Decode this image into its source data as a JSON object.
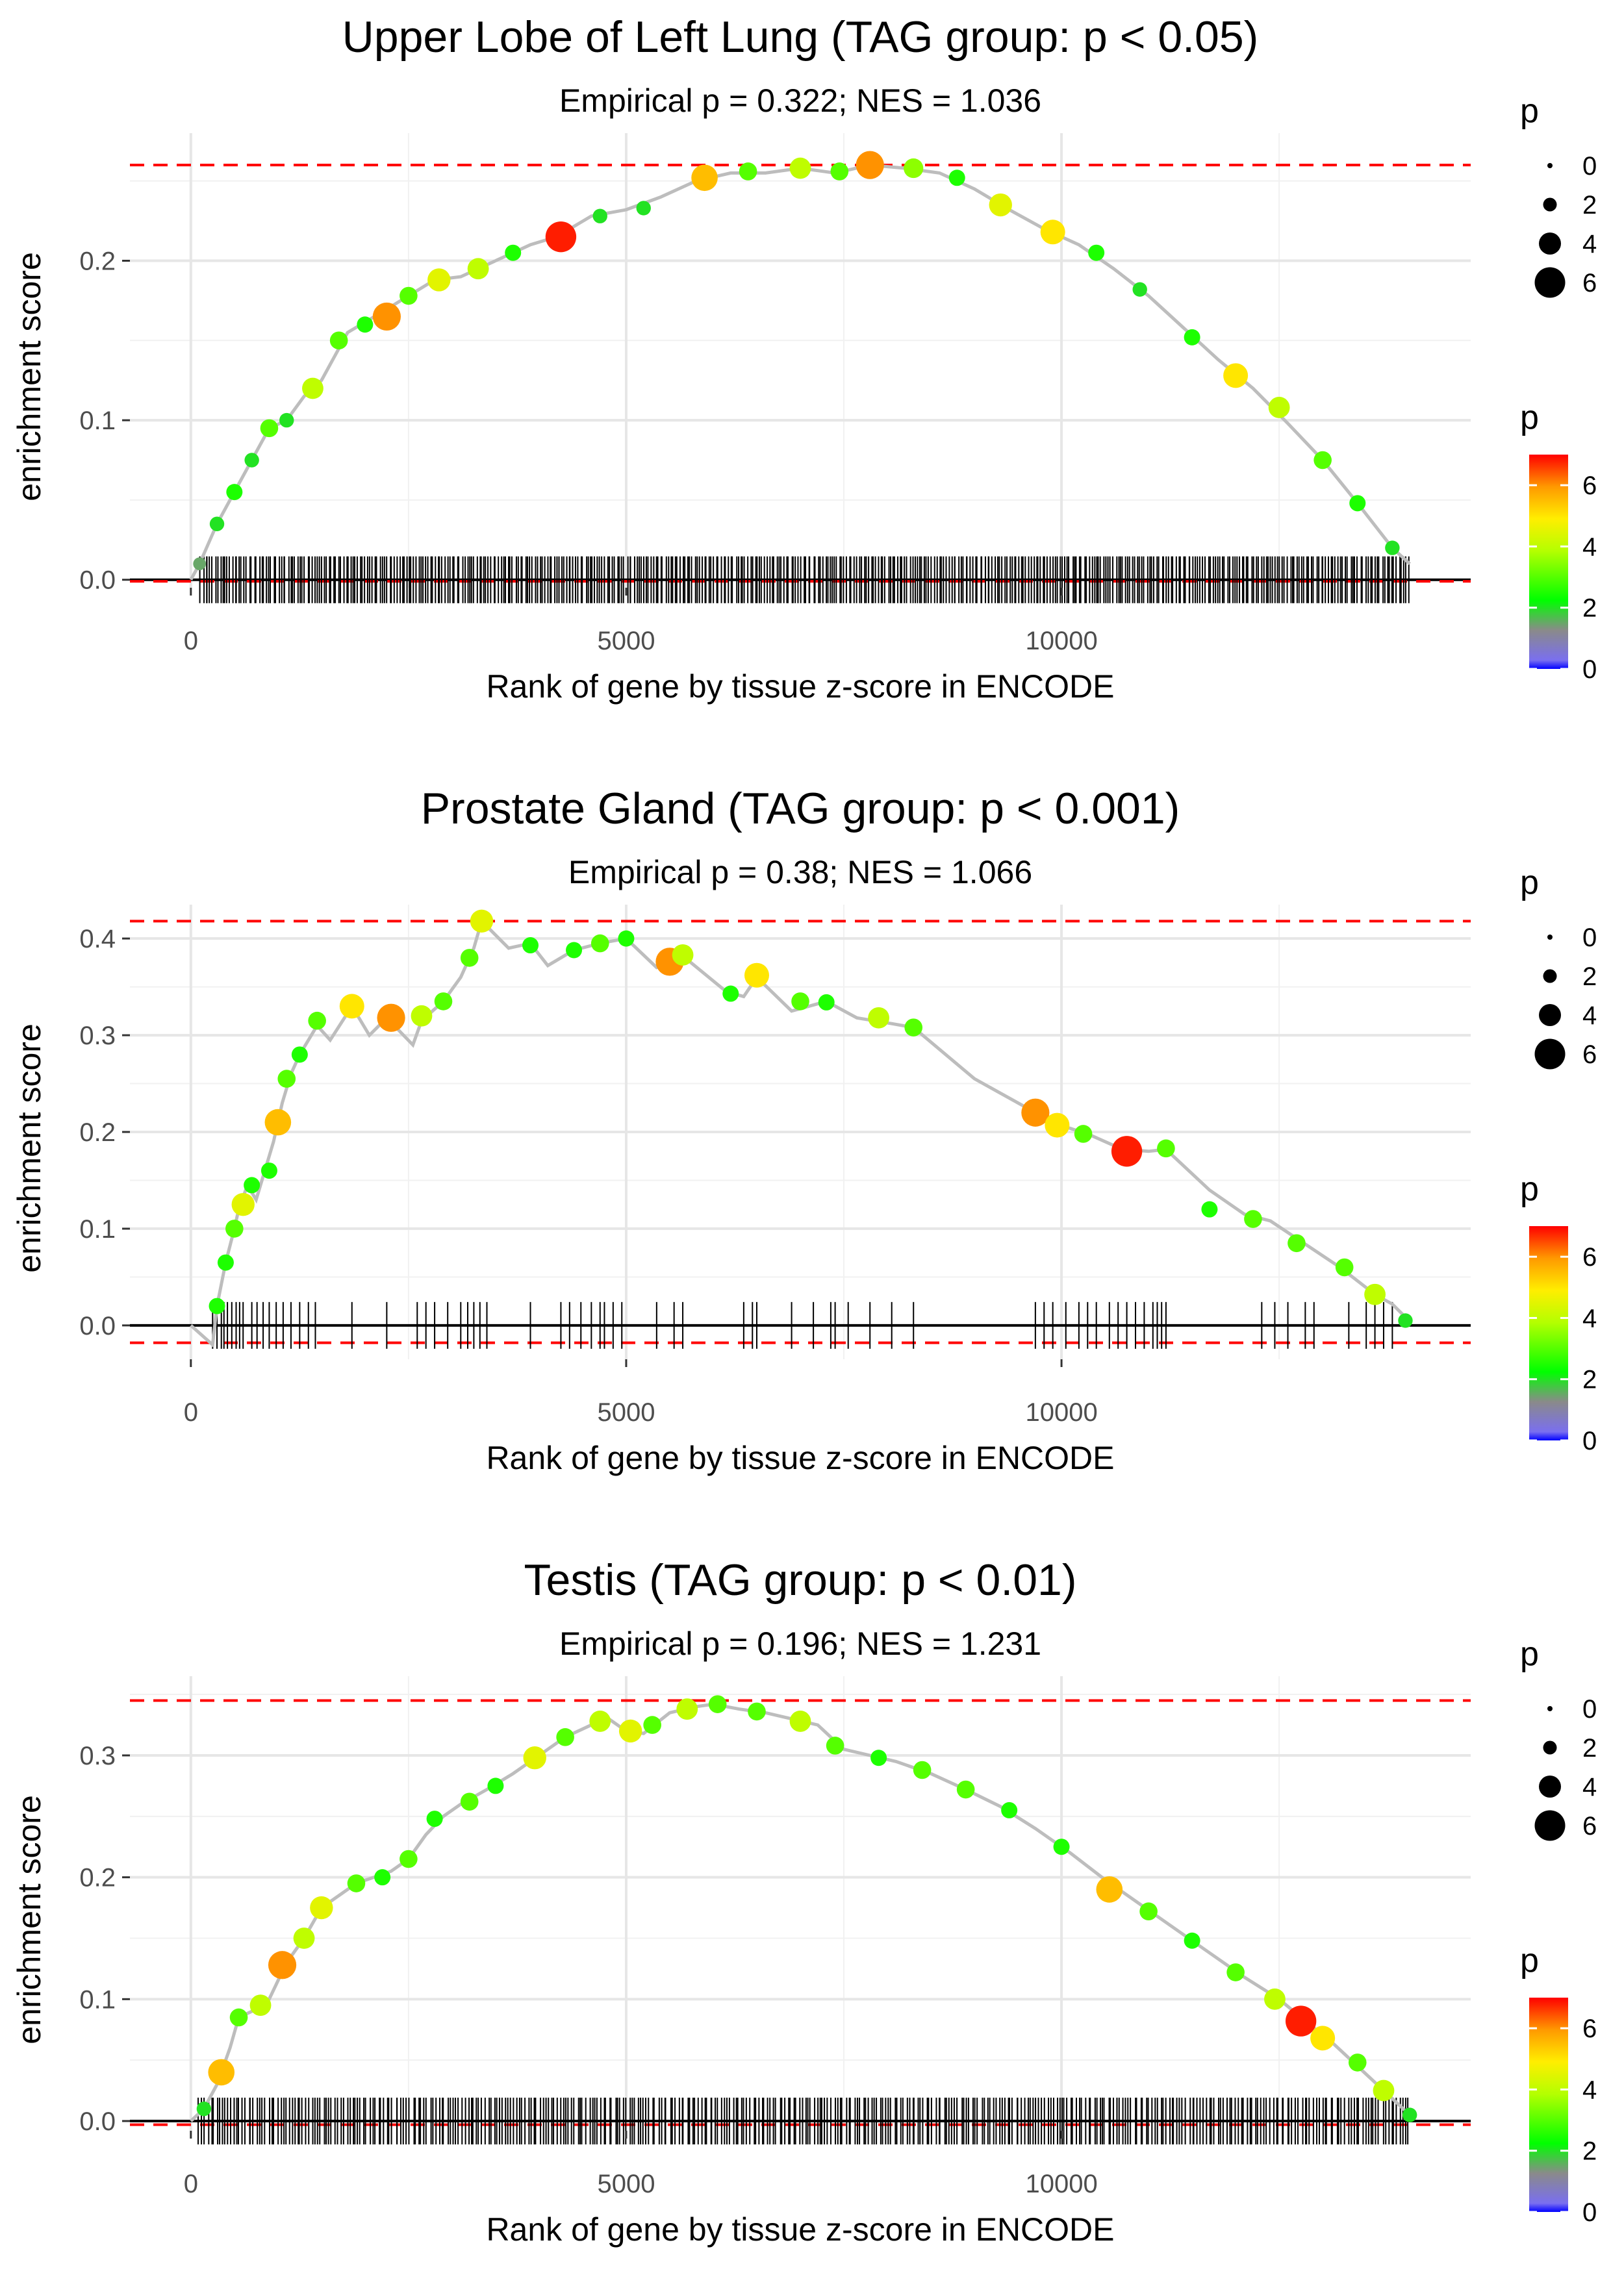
{
  "chart_data": [
    {
      "type": "scatter",
      "title": "Upper Lobe of Left Lung (TAG group: p < 0.05)",
      "subtitle": "Empirical p = 0.322; NES = 1.036",
      "xlabel": "Rank of gene by tissue z-score in ENCODE",
      "ylabel": "enrichment score",
      "xlim": [
        -700,
        14700
      ],
      "ylim": [
        -0.005,
        0.28
      ],
      "xticks": [
        0,
        5000,
        10000
      ],
      "xtick_labels": [
        "0",
        "5000",
        "10000"
      ],
      "yticks": [
        0.0,
        0.1,
        0.2
      ],
      "ytick_labels": [
        "0.0",
        "0.1",
        "0.2"
      ],
      "hlines": {
        "max_es": 0.26,
        "min_es": -0.001
      },
      "curve": [
        [
          0,
          0
        ],
        [
          100,
          0.01
        ],
        [
          300,
          0.035
        ],
        [
          500,
          0.055
        ],
        [
          700,
          0.075
        ],
        [
          900,
          0.095
        ],
        [
          1100,
          0.1
        ],
        [
          1300,
          0.115
        ],
        [
          1500,
          0.125
        ],
        [
          1800,
          0.155
        ],
        [
          2200,
          0.168
        ],
        [
          2500,
          0.178
        ],
        [
          2800,
          0.188
        ],
        [
          3100,
          0.19
        ],
        [
          3500,
          0.2
        ],
        [
          3900,
          0.21
        ],
        [
          4200,
          0.215
        ],
        [
          4600,
          0.228
        ],
        [
          5000,
          0.232
        ],
        [
          5400,
          0.24
        ],
        [
          5800,
          0.25
        ],
        [
          6200,
          0.255
        ],
        [
          6600,
          0.255
        ],
        [
          7000,
          0.258
        ],
        [
          7400,
          0.255
        ],
        [
          7800,
          0.26
        ],
        [
          8200,
          0.258
        ],
        [
          8600,
          0.255
        ],
        [
          9000,
          0.245
        ],
        [
          9400,
          0.232
        ],
        [
          9800,
          0.22
        ],
        [
          10200,
          0.21
        ],
        [
          10600,
          0.195
        ],
        [
          11000,
          0.178
        ],
        [
          11400,
          0.158
        ],
        [
          11800,
          0.138
        ],
        [
          12200,
          0.12
        ],
        [
          12600,
          0.098
        ],
        [
          13000,
          0.075
        ],
        [
          13400,
          0.048
        ],
        [
          13800,
          0.02
        ],
        [
          14000,
          0.01
        ]
      ],
      "points": [
        [
          100,
          0.01,
          1.5
        ],
        [
          300,
          0.035,
          2
        ],
        [
          500,
          0.055,
          2.5
        ],
        [
          700,
          0.075,
          2
        ],
        [
          900,
          0.095,
          3
        ],
        [
          1100,
          0.1,
          2
        ],
        [
          1400,
          0.12,
          4
        ],
        [
          1700,
          0.15,
          3
        ],
        [
          2000,
          0.16,
          2.5
        ],
        [
          2250,
          0.165,
          6
        ],
        [
          2500,
          0.178,
          3
        ],
        [
          2850,
          0.188,
          4.5
        ],
        [
          3300,
          0.195,
          4
        ],
        [
          3700,
          0.205,
          2.5
        ],
        [
          4250,
          0.215,
          6.8
        ],
        [
          4700,
          0.228,
          2
        ],
        [
          5200,
          0.233,
          2
        ],
        [
          5900,
          0.252,
          5.5
        ],
        [
          6400,
          0.256,
          3
        ],
        [
          7000,
          0.258,
          4
        ],
        [
          7450,
          0.256,
          3
        ],
        [
          7800,
          0.26,
          6
        ],
        [
          8300,
          0.258,
          3.5
        ],
        [
          8800,
          0.252,
          2.5
        ],
        [
          9300,
          0.235,
          4.5
        ],
        [
          9900,
          0.218,
          5
        ],
        [
          10400,
          0.205,
          2.5
        ],
        [
          10900,
          0.182,
          2
        ],
        [
          11500,
          0.152,
          2.5
        ],
        [
          12000,
          0.128,
          5
        ],
        [
          12500,
          0.108,
          4
        ],
        [
          13000,
          0.075,
          3
        ],
        [
          13400,
          0.048,
          2.5
        ],
        [
          13800,
          0.02,
          2
        ]
      ],
      "ticks_count": 500,
      "ticks_span": [
        100,
        14000
      ],
      "size_legend": {
        "title": "p",
        "values": [
          "0",
          "2",
          "4",
          "6"
        ]
      },
      "color_legend": {
        "title": "p",
        "ticks": [
          "0",
          "2",
          "4",
          "6"
        ],
        "max": 7
      }
    },
    {
      "type": "scatter",
      "title": "Prostate Gland (TAG group: p < 0.001)",
      "subtitle": "Empirical p = 0.38; NES = 1.066",
      "xlabel": "Rank of gene by tissue z-score in ENCODE",
      "ylabel": "enrichment score",
      "xlim": [
        -700,
        14700
      ],
      "ylim": [
        -0.035,
        0.435
      ],
      "xticks": [
        0,
        5000,
        10000
      ],
      "xtick_labels": [
        "0",
        "5000",
        "10000"
      ],
      "yticks": [
        0.0,
        0.1,
        0.2,
        0.3,
        0.4
      ],
      "ytick_labels": [
        "0.0",
        "0.1",
        "0.2",
        "0.3",
        "0.4"
      ],
      "hlines": {
        "max_es": 0.418,
        "min_es": -0.018
      },
      "curve": [
        [
          0,
          0
        ],
        [
          250,
          -0.02
        ],
        [
          300,
          0.02
        ],
        [
          400,
          0.065
        ],
        [
          500,
          0.1
        ],
        [
          550,
          0.12
        ],
        [
          650,
          0.145
        ],
        [
          750,
          0.13
        ],
        [
          850,
          0.16
        ],
        [
          950,
          0.19
        ],
        [
          1050,
          0.23
        ],
        [
          1150,
          0.26
        ],
        [
          1250,
          0.28
        ],
        [
          1450,
          0.31
        ],
        [
          1600,
          0.295
        ],
        [
          1850,
          0.33
        ],
        [
          2050,
          0.3
        ],
        [
          2250,
          0.318
        ],
        [
          2550,
          0.29
        ],
        [
          2650,
          0.315
        ],
        [
          2900,
          0.335
        ],
        [
          3100,
          0.36
        ],
        [
          3250,
          0.39
        ],
        [
          3340,
          0.418
        ],
        [
          3650,
          0.39
        ],
        [
          3900,
          0.395
        ],
        [
          4100,
          0.372
        ],
        [
          4400,
          0.388
        ],
        [
          4700,
          0.395
        ],
        [
          5000,
          0.4
        ],
        [
          5350,
          0.37
        ],
        [
          5550,
          0.375
        ],
        [
          5650,
          0.382
        ],
        [
          6150,
          0.345
        ],
        [
          6350,
          0.34
        ],
        [
          6500,
          0.36
        ],
        [
          6900,
          0.325
        ],
        [
          7300,
          0.335
        ],
        [
          7650,
          0.318
        ],
        [
          8050,
          0.312
        ],
        [
          8300,
          0.308
        ],
        [
          9000,
          0.255
        ],
        [
          9700,
          0.22
        ],
        [
          9950,
          0.208
        ],
        [
          10300,
          0.198
        ],
        [
          10700,
          0.182
        ],
        [
          11000,
          0.18
        ],
        [
          11200,
          0.182
        ],
        [
          11700,
          0.14
        ],
        [
          12100,
          0.115
        ],
        [
          12400,
          0.108
        ],
        [
          12700,
          0.09
        ],
        [
          13200,
          0.06
        ],
        [
          13600,
          0.032
        ],
        [
          13800,
          0.022
        ],
        [
          14000,
          0.004
        ]
      ],
      "points": [
        [
          300,
          0.02,
          2.5
        ],
        [
          400,
          0.065,
          2.5
        ],
        [
          500,
          0.1,
          3
        ],
        [
          600,
          0.125,
          4.5
        ],
        [
          700,
          0.145,
          2.5
        ],
        [
          900,
          0.16,
          2.5
        ],
        [
          1000,
          0.21,
          5.5
        ],
        [
          1100,
          0.255,
          3
        ],
        [
          1250,
          0.28,
          2.5
        ],
        [
          1450,
          0.315,
          3
        ],
        [
          1850,
          0.33,
          5
        ],
        [
          2300,
          0.318,
          6
        ],
        [
          2650,
          0.32,
          4
        ],
        [
          2900,
          0.335,
          3
        ],
        [
          3200,
          0.38,
          3
        ],
        [
          3340,
          0.418,
          4.5
        ],
        [
          3900,
          0.393,
          2.5
        ],
        [
          4400,
          0.388,
          2.5
        ],
        [
          4700,
          0.395,
          3
        ],
        [
          5000,
          0.4,
          2.5
        ],
        [
          5500,
          0.376,
          6
        ],
        [
          5650,
          0.383,
          4
        ],
        [
          6200,
          0.343,
          2.5
        ],
        [
          6500,
          0.362,
          5
        ],
        [
          7000,
          0.335,
          3
        ],
        [
          7300,
          0.334,
          2.5
        ],
        [
          7900,
          0.318,
          4
        ],
        [
          8300,
          0.308,
          3
        ],
        [
          9700,
          0.22,
          6
        ],
        [
          9950,
          0.207,
          5
        ],
        [
          10250,
          0.198,
          3
        ],
        [
          10750,
          0.18,
          6.8
        ],
        [
          11200,
          0.183,
          3
        ],
        [
          11700,
          0.12,
          2.5
        ],
        [
          12200,
          0.11,
          3
        ],
        [
          12700,
          0.085,
          3
        ],
        [
          13250,
          0.06,
          3
        ],
        [
          13600,
          0.032,
          4
        ],
        [
          13950,
          0.005,
          2
        ]
      ],
      "ticks_x": [
        250,
        300,
        350,
        380,
        420,
        470,
        520,
        560,
        600,
        700,
        760,
        830,
        900,
        980,
        1060,
        1150,
        1250,
        1350,
        1430,
        1850,
        2250,
        2600,
        2700,
        2800,
        2950,
        3100,
        3180,
        3250,
        3320,
        3400,
        3900,
        4250,
        4350,
        4480,
        4600,
        4700,
        4750,
        4850,
        4950,
        5350,
        5550,
        5650,
        6350,
        6450,
        6500,
        6900,
        7150,
        7350,
        7400,
        7550,
        7800,
        8050,
        8300,
        9700,
        9800,
        9900,
        10050,
        10200,
        10300,
        10400,
        10550,
        10650,
        10750,
        10850,
        10950,
        11050,
        11100,
        11150,
        11200,
        12300,
        12450,
        12600,
        12800,
        12900,
        13300,
        13500,
        13600,
        13700,
        13800
      ],
      "size_legend": {
        "title": "p",
        "values": [
          "0",
          "2",
          "4",
          "6"
        ]
      },
      "color_legend": {
        "title": "p",
        "ticks": [
          "0",
          "2",
          "4",
          "6"
        ],
        "max": 7
      }
    },
    {
      "type": "scatter",
      "title": "Testis (TAG group: p < 0.01)",
      "subtitle": "Empirical p = 0.196; NES = 1.231",
      "xlabel": "Rank of gene by tissue z-score in ENCODE",
      "ylabel": "enrichment score",
      "xlim": [
        -700,
        14700
      ],
      "ylim": [
        -0.008,
        0.365
      ],
      "xticks": [
        0,
        5000,
        10000
      ],
      "xtick_labels": [
        "0",
        "5000",
        "10000"
      ],
      "yticks": [
        0.0,
        0.1,
        0.2,
        0.3
      ],
      "ytick_labels": [
        "0.0",
        "0.1",
        "0.2",
        "0.3"
      ],
      "hlines": {
        "max_es": 0.345,
        "min_es": -0.003
      },
      "curve": [
        [
          0,
          0
        ],
        [
          150,
          0.01
        ],
        [
          300,
          0.03
        ],
        [
          450,
          0.06
        ],
        [
          550,
          0.085
        ],
        [
          700,
          0.09
        ],
        [
          900,
          0.1
        ],
        [
          1100,
          0.13
        ],
        [
          1300,
          0.15
        ],
        [
          1500,
          0.175
        ],
        [
          1700,
          0.185
        ],
        [
          1900,
          0.195
        ],
        [
          2100,
          0.2
        ],
        [
          2300,
          0.205
        ],
        [
          2500,
          0.215
        ],
        [
          2700,
          0.235
        ],
        [
          2900,
          0.25
        ],
        [
          3100,
          0.26
        ],
        [
          3400,
          0.272
        ],
        [
          3700,
          0.285
        ],
        [
          4000,
          0.3
        ],
        [
          4300,
          0.315
        ],
        [
          4600,
          0.325
        ],
        [
          4800,
          0.33
        ],
        [
          5000,
          0.32
        ],
        [
          5200,
          0.318
        ],
        [
          5500,
          0.335
        ],
        [
          5800,
          0.34
        ],
        [
          6000,
          0.342
        ],
        [
          6300,
          0.338
        ],
        [
          6600,
          0.335
        ],
        [
          6900,
          0.33
        ],
        [
          7200,
          0.325
        ],
        [
          7500,
          0.305
        ],
        [
          7800,
          0.3
        ],
        [
          8100,
          0.295
        ],
        [
          8500,
          0.285
        ],
        [
          8900,
          0.272
        ],
        [
          9300,
          0.258
        ],
        [
          9700,
          0.24
        ],
        [
          10100,
          0.22
        ],
        [
          10500,
          0.198
        ],
        [
          10900,
          0.178
        ],
        [
          11300,
          0.158
        ],
        [
          11700,
          0.138
        ],
        [
          12100,
          0.118
        ],
        [
          12500,
          0.1
        ],
        [
          12800,
          0.082
        ],
        [
          13100,
          0.065
        ],
        [
          13400,
          0.045
        ],
        [
          13700,
          0.025
        ],
        [
          14000,
          0.005
        ]
      ],
      "points": [
        [
          150,
          0.01,
          2
        ],
        [
          350,
          0.04,
          5.5
        ],
        [
          550,
          0.085,
          3
        ],
        [
          800,
          0.095,
          4
        ],
        [
          1050,
          0.128,
          6
        ],
        [
          1300,
          0.15,
          4
        ],
        [
          1500,
          0.175,
          4.5
        ],
        [
          1900,
          0.195,
          3
        ],
        [
          2200,
          0.2,
          2.5
        ],
        [
          2500,
          0.215,
          3
        ],
        [
          2800,
          0.248,
          2.5
        ],
        [
          3200,
          0.262,
          3
        ],
        [
          3500,
          0.275,
          2.5
        ],
        [
          3950,
          0.298,
          4.5
        ],
        [
          4300,
          0.315,
          3
        ],
        [
          4700,
          0.328,
          4
        ],
        [
          5050,
          0.32,
          4.5
        ],
        [
          5300,
          0.325,
          3
        ],
        [
          5700,
          0.338,
          4
        ],
        [
          6050,
          0.342,
          3
        ],
        [
          6500,
          0.336,
          3
        ],
        [
          7000,
          0.328,
          4
        ],
        [
          7400,
          0.308,
          3
        ],
        [
          7900,
          0.298,
          2.5
        ],
        [
          8400,
          0.288,
          3
        ],
        [
          8900,
          0.272,
          3
        ],
        [
          9400,
          0.255,
          2.5
        ],
        [
          10000,
          0.225,
          2.5
        ],
        [
          10550,
          0.19,
          5.5
        ],
        [
          11000,
          0.172,
          3
        ],
        [
          11500,
          0.148,
          2.5
        ],
        [
          12000,
          0.122,
          3
        ],
        [
          12450,
          0.1,
          4
        ],
        [
          12750,
          0.082,
          6.8
        ],
        [
          13000,
          0.068,
          5
        ],
        [
          13400,
          0.048,
          3
        ],
        [
          13700,
          0.025,
          4
        ],
        [
          14000,
          0.005,
          2
        ]
      ],
      "ticks_count": 420,
      "ticks_span": [
        80,
        14000
      ],
      "size_legend": {
        "title": "p",
        "values": [
          "0",
          "2",
          "4",
          "6"
        ]
      },
      "color_legend": {
        "title": "p",
        "ticks": [
          "0",
          "2",
          "4",
          "6"
        ],
        "max": 7
      }
    }
  ]
}
